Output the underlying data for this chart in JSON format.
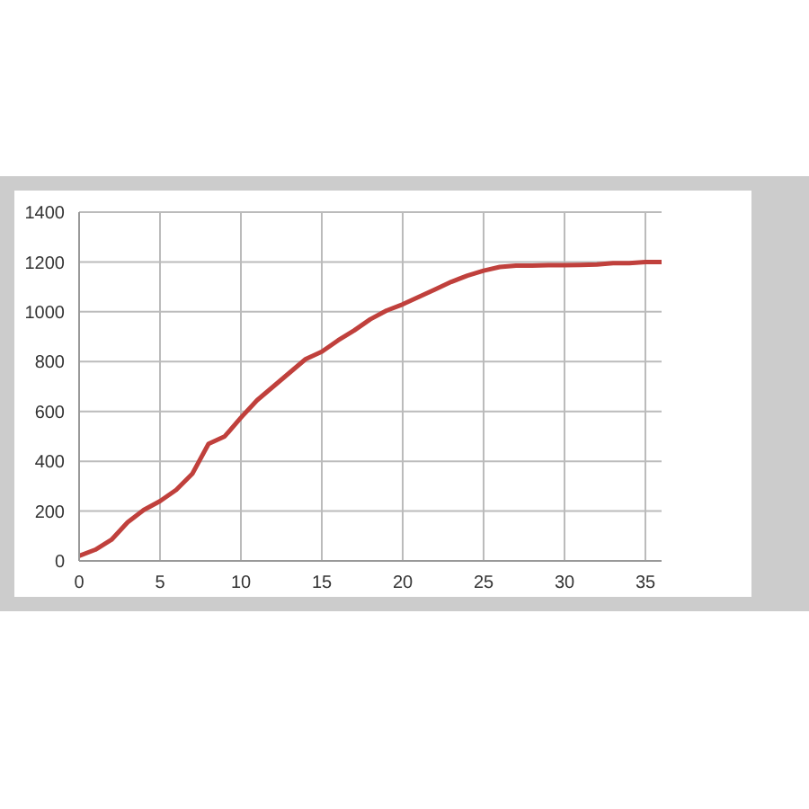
{
  "chart_data": {
    "type": "line",
    "x": [
      0,
      1,
      2,
      3,
      4,
      5,
      6,
      7,
      8,
      9,
      10,
      11,
      12,
      13,
      14,
      15,
      16,
      17,
      18,
      19,
      20,
      21,
      22,
      23,
      24,
      25,
      26,
      27,
      28,
      29,
      30,
      31,
      32,
      33,
      34,
      35,
      36
    ],
    "series": [
      {
        "color": "#c0403c",
        "values": [
          20,
          45,
          85,
          155,
          205,
          240,
          285,
          350,
          470,
          500,
          575,
          645,
          700,
          755,
          810,
          840,
          885,
          925,
          970,
          1005,
          1030,
          1060,
          1090,
          1120,
          1145,
          1165,
          1180,
          1185,
          1185,
          1187,
          1187,
          1188,
          1190,
          1195,
          1195,
          1200,
          1200
        ]
      }
    ],
    "xlim": [
      0,
      36
    ],
    "xticks": [
      0,
      5,
      10,
      15,
      20,
      25,
      30,
      35
    ],
    "ylim": [
      0,
      1400
    ],
    "yticks": [
      0,
      200,
      400,
      600,
      800,
      1000,
      1200,
      1400
    ],
    "grid": true,
    "legend": false,
    "marker": "none",
    "line_style": "solid"
  }
}
